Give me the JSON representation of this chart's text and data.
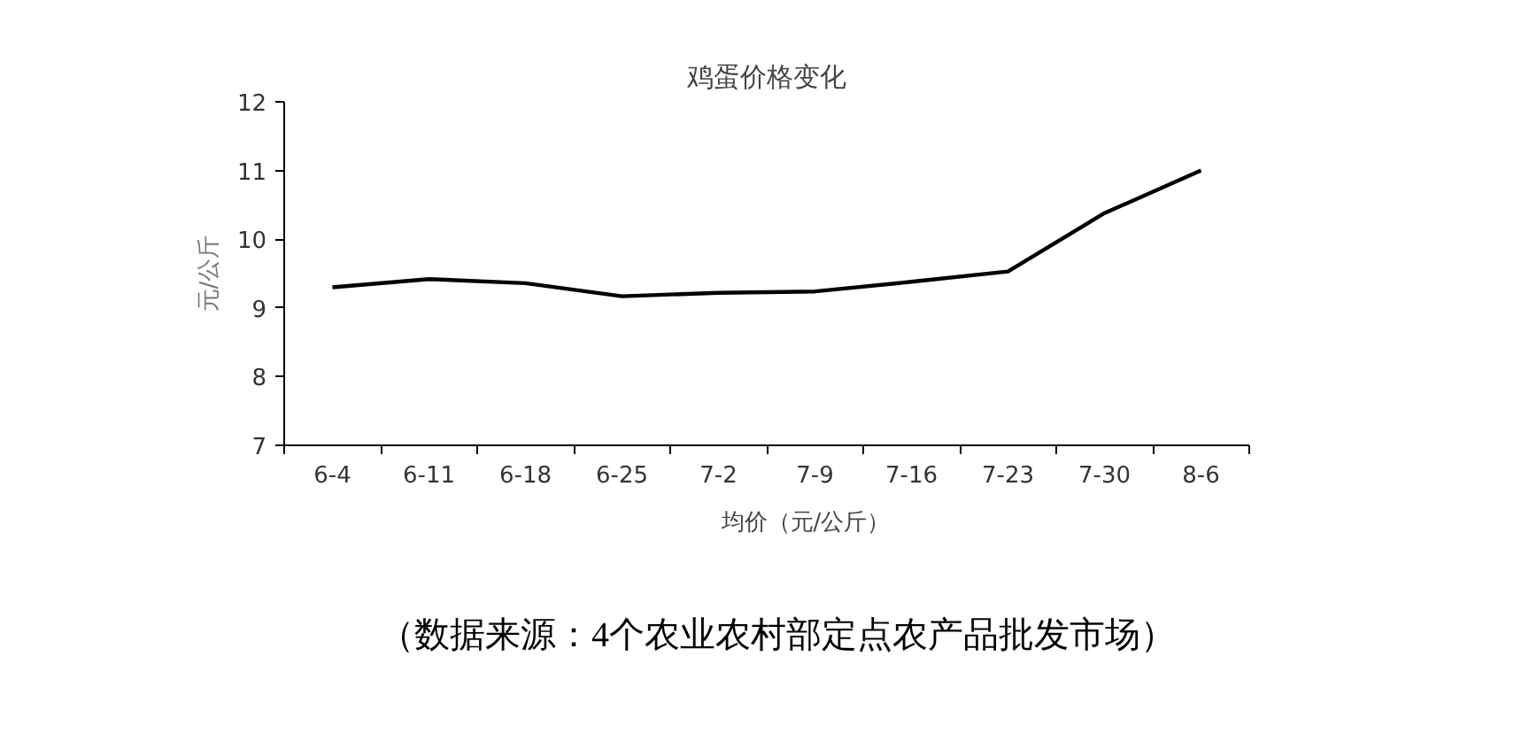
{
  "chart_data": {
    "type": "line",
    "title": "鸡蛋价格变化",
    "ylabel": "元/公斤",
    "categories": [
      "6-4",
      "6-11",
      "6-18",
      "6-25",
      "7-2",
      "7-9",
      "7-16",
      "7-23",
      "7-30",
      "8-6"
    ],
    "series": [
      {
        "name": "均价（元/公斤）",
        "color": "#000000",
        "values": [
          9.3,
          9.42,
          9.36,
          9.17,
          9.22,
          9.24,
          9.38,
          9.53,
          10.38,
          11.0
        ]
      }
    ],
    "ylim": [
      7,
      12
    ],
    "yticks": [
      7,
      8,
      9,
      10,
      11,
      12
    ],
    "legend": "bottom",
    "line_style": "solid",
    "annotations": [
      "（数据来源：4个农业农村部定点农产品批发市场）"
    ]
  }
}
